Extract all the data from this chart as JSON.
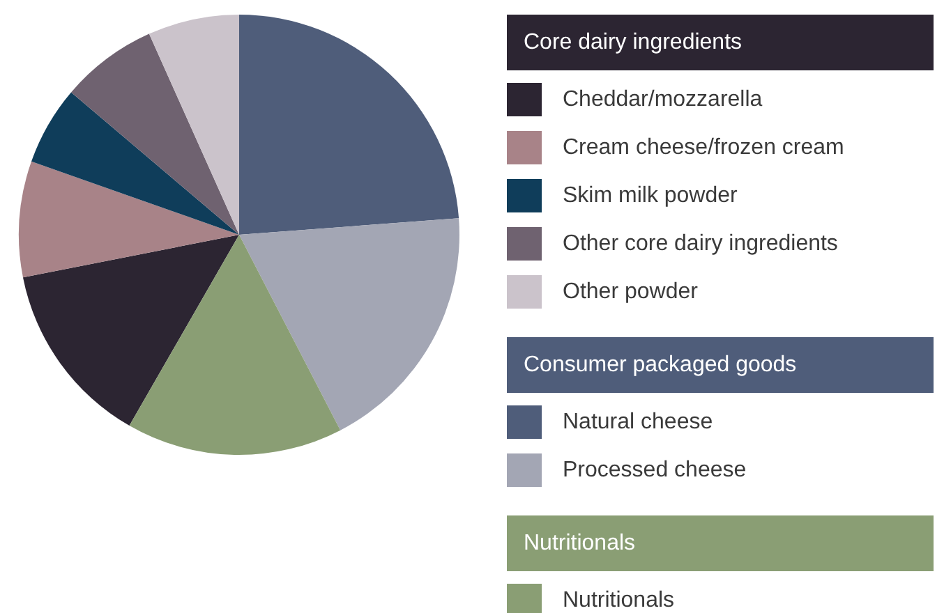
{
  "chart_data": {
    "type": "pie",
    "categories": [
      "Cheddar/mozzarella",
      "Cream cheese/frozen cream",
      "Skim milk powder",
      "Other core dairy ingredients",
      "Other powder",
      "Natural cheese",
      "Processed cheese",
      "Nutritionals"
    ],
    "values": [
      13.6,
      8.5,
      5.8,
      7.1,
      6.7,
      23.8,
      18.6,
      15.9
    ],
    "colors": [
      "#2c2532",
      "#a88388",
      "#0f3d5a",
      "#6f6270",
      "#cbc3cb",
      "#4f5d7a",
      "#a3a6b4",
      "#8a9e74"
    ],
    "annotations": [
      "Core dairy ingredients",
      "Consumer packaged goods",
      "Nutritionals"
    ],
    "legend": "right"
  }
}
